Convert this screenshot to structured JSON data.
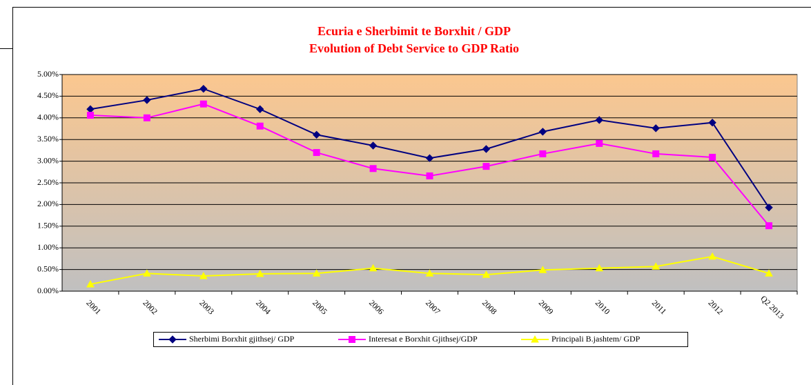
{
  "chart_data": {
    "type": "line",
    "title": [
      "Ecuria e Sherbimit  te Borxhit / GDP",
      "Evolution of Debt Service to GDP Ratio"
    ],
    "categories": [
      "2001",
      "2002",
      "2003",
      "2004",
      "2005",
      "2006",
      "2007",
      "2008",
      "2009",
      "2010",
      "2011",
      "2012",
      "Q2 2013"
    ],
    "series": [
      {
        "name": "Sherbimi Borxhit gjithsej/ GDP",
        "color": "#000080",
        "marker": "diamond",
        "values": [
          4.2,
          4.41,
          4.67,
          4.2,
          3.61,
          3.36,
          3.07,
          3.28,
          3.68,
          3.95,
          3.76,
          3.89,
          1.93
        ]
      },
      {
        "name": "Interesat e  Borxhit Gjithsej/GDP",
        "color": "#ff00ff",
        "marker": "square",
        "values": [
          4.06,
          4.0,
          4.32,
          3.81,
          3.2,
          2.83,
          2.66,
          2.88,
          3.17,
          3.41,
          3.17,
          3.09,
          1.51
        ]
      },
      {
        "name": "Principali B.jashtem/ GDP",
        "color": "#ffff00",
        "marker": "triangle",
        "values": [
          0.16,
          0.41,
          0.35,
          0.4,
          0.41,
          0.53,
          0.41,
          0.38,
          0.49,
          0.53,
          0.57,
          0.8,
          0.41
        ]
      }
    ],
    "ylim": [
      0,
      5
    ],
    "yticks": [
      {
        "value": 0,
        "label": "0.00%"
      },
      {
        "value": 0.5,
        "label": "0.50%"
      },
      {
        "value": 1,
        "label": "1.00%"
      },
      {
        "value": 1.5,
        "label": "1.50%"
      },
      {
        "value": 2,
        "label": "2.00%"
      },
      {
        "value": 2.5,
        "label": "2.50%"
      },
      {
        "value": 3,
        "label": "3.00%"
      },
      {
        "value": 3.5,
        "label": "3.50%"
      },
      {
        "value": 4,
        "label": "4.00%"
      },
      {
        "value": 4.5,
        "label": "4.50%"
      },
      {
        "value": 5,
        "label": "5.00%"
      }
    ],
    "grid": true,
    "legend": "bottom"
  }
}
